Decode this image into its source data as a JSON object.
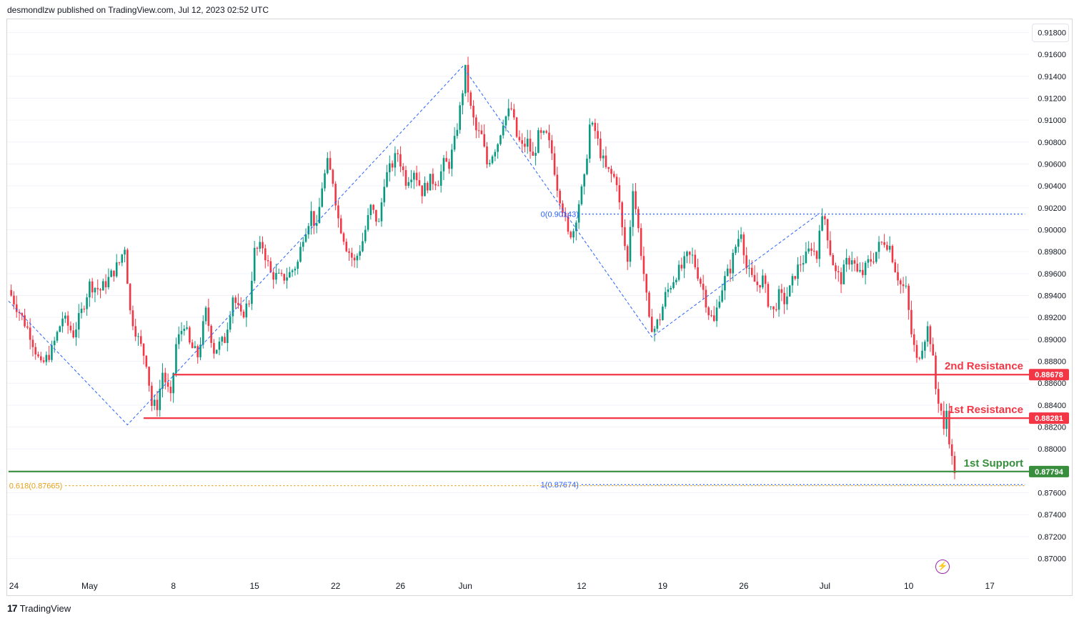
{
  "header": {
    "publish_line": "desmondlzw published on TradingView.com, Jul 12, 2023 02:52 UTC"
  },
  "footer": {
    "brand": "TradingView",
    "logo_glyph": "17"
  },
  "chart_data": {
    "type": "candlestick",
    "instrument": "",
    "ylim": [
      0.8688,
      0.9192
    ],
    "y_ticks": [
      "0.91800",
      "0.91600",
      "0.91400",
      "0.91200",
      "0.91000",
      "0.90800",
      "0.90600",
      "0.90400",
      "0.90200",
      "0.90000",
      "0.89800",
      "0.89600",
      "0.89400",
      "0.89200",
      "0.89000",
      "0.88800",
      "0.88600",
      "0.88400",
      "0.88200",
      "0.88000",
      "0.87800",
      "0.87600",
      "0.87400",
      "0.87200",
      "0.87000"
    ],
    "x_ticks": [
      {
        "label": "24",
        "bar": 2
      },
      {
        "label": "May",
        "bar": 30
      },
      {
        "label": "8",
        "bar": 61
      },
      {
        "label": "15",
        "bar": 91
      },
      {
        "label": "22",
        "bar": 121
      },
      {
        "label": "26",
        "bar": 145
      },
      {
        "label": "Jun",
        "bar": 169
      },
      {
        "label": "12",
        "bar": 212
      },
      {
        "label": "19",
        "bar": 242
      },
      {
        "label": "26",
        "bar": 272
      },
      {
        "label": "Jul",
        "bar": 302
      },
      {
        "label": "10",
        "bar": 333
      },
      {
        "label": "17",
        "bar": 363
      }
    ],
    "x_bar_count": 378,
    "last_bar": 350,
    "anchors": [
      [
        0,
        0.8945
      ],
      [
        3,
        0.893
      ],
      [
        8,
        0.8905
      ],
      [
        12,
        0.8875
      ],
      [
        16,
        0.889
      ],
      [
        20,
        0.892
      ],
      [
        24,
        0.8905
      ],
      [
        27,
        0.8925
      ],
      [
        30,
        0.895
      ],
      [
        34,
        0.8945
      ],
      [
        37,
        0.8955
      ],
      [
        41,
        0.897
      ],
      [
        43,
        0.8985
      ],
      [
        45,
        0.8925
      ],
      [
        48,
        0.89
      ],
      [
        51,
        0.888
      ],
      [
        53,
        0.884
      ],
      [
        55,
        0.884
      ],
      [
        57,
        0.887
      ],
      [
        60,
        0.8845
      ],
      [
        62,
        0.8895
      ],
      [
        65,
        0.8915
      ],
      [
        67,
        0.8895
      ],
      [
        70,
        0.8885
      ],
      [
        73,
        0.8925
      ],
      [
        76,
        0.889
      ],
      [
        80,
        0.89
      ],
      [
        83,
        0.894
      ],
      [
        86,
        0.892
      ],
      [
        89,
        0.8935
      ],
      [
        91,
        0.898
      ],
      [
        94,
        0.8985
      ],
      [
        97,
        0.896
      ],
      [
        101,
        0.8955
      ],
      [
        104,
        0.896
      ],
      [
        107,
        0.897
      ],
      [
        109,
        0.8995
      ],
      [
        112,
        0.9015
      ],
      [
        114,
        0.9
      ],
      [
        116,
        0.904
      ],
      [
        118,
        0.906
      ],
      [
        120,
        0.9045
      ],
      [
        122,
        0.901
      ],
      [
        125,
        0.8985
      ],
      [
        128,
        0.897
      ],
      [
        131,
        0.899
      ],
      [
        134,
        0.902
      ],
      [
        137,
        0.9005
      ],
      [
        139,
        0.9045
      ],
      [
        142,
        0.906
      ],
      [
        144,
        0.907
      ],
      [
        147,
        0.9045
      ],
      [
        150,
        0.9055
      ],
      [
        153,
        0.9035
      ],
      [
        156,
        0.9045
      ],
      [
        159,
        0.9045
      ],
      [
        161,
        0.906
      ],
      [
        163,
        0.906
      ],
      [
        165,
        0.908
      ],
      [
        167,
        0.911
      ],
      [
        169,
        0.9145
      ],
      [
        171,
        0.911
      ],
      [
        173,
        0.909
      ],
      [
        175,
        0.9085
      ],
      [
        177,
        0.906
      ],
      [
        179,
        0.907
      ],
      [
        181,
        0.908
      ],
      [
        183,
        0.91
      ],
      [
        186,
        0.911
      ],
      [
        188,
        0.9085
      ],
      [
        190,
        0.9075
      ],
      [
        192,
        0.908
      ],
      [
        194,
        0.9065
      ],
      [
        196,
        0.9085
      ],
      [
        199,
        0.9085
      ],
      [
        201,
        0.907
      ],
      [
        203,
        0.904
      ],
      [
        205,
        0.902
      ],
      [
        207,
        0.8995
      ],
      [
        209,
        0.9
      ],
      [
        211,
        0.9025
      ],
      [
        213,
        0.9045
      ],
      [
        215,
        0.9095
      ],
      [
        217,
        0.909
      ],
      [
        219,
        0.907
      ],
      [
        221,
        0.9055
      ],
      [
        223,
        0.905
      ],
      [
        225,
        0.9045
      ],
      [
        227,
        0.9
      ],
      [
        229,
        0.897
      ],
      [
        231,
        0.904
      ],
      [
        233,
        0.9
      ],
      [
        235,
        0.896
      ],
      [
        237,
        0.8915
      ],
      [
        239,
        0.891
      ],
      [
        241,
        0.892
      ],
      [
        243,
        0.894
      ],
      [
        245,
        0.895
      ],
      [
        247,
        0.896
      ],
      [
        249,
        0.8965
      ],
      [
        251,
        0.8975
      ],
      [
        253,
        0.8975
      ],
      [
        255,
        0.896
      ],
      [
        257,
        0.8945
      ],
      [
        259,
        0.8925
      ],
      [
        261,
        0.8915
      ],
      [
        263,
        0.894
      ],
      [
        265,
        0.8955
      ],
      [
        267,
        0.8965
      ],
      [
        269,
        0.8985
      ],
      [
        271,
        0.9
      ],
      [
        273,
        0.8965
      ],
      [
        275,
        0.8955
      ],
      [
        277,
        0.895
      ],
      [
        279,
        0.8955
      ],
      [
        281,
        0.8935
      ],
      [
        283,
        0.8925
      ],
      [
        285,
        0.894
      ],
      [
        287,
        0.8935
      ],
      [
        289,
        0.8945
      ],
      [
        291,
        0.896
      ],
      [
        293,
        0.897
      ],
      [
        295,
        0.8975
      ],
      [
        297,
        0.8985
      ],
      [
        299,
        0.8975
      ],
      [
        300,
        0.9005
      ],
      [
        302,
        0.901
      ],
      [
        304,
        0.898
      ],
      [
        306,
        0.896
      ],
      [
        308,
        0.8955
      ],
      [
        310,
        0.897
      ],
      [
        312,
        0.8975
      ],
      [
        314,
        0.896
      ],
      [
        316,
        0.896
      ],
      [
        318,
        0.897
      ],
      [
        320,
        0.8975
      ],
      [
        322,
        0.8985
      ],
      [
        324,
        0.899
      ],
      [
        326,
        0.8985
      ],
      [
        328,
        0.8965
      ],
      [
        330,
        0.895
      ],
      [
        332,
        0.8945
      ],
      [
        334,
        0.8905
      ],
      [
        336,
        0.888
      ],
      [
        338,
        0.8895
      ],
      [
        340,
        0.891
      ],
      [
        341,
        0.89
      ],
      [
        342,
        0.888
      ],
      [
        343,
        0.8855
      ],
      [
        344,
        0.8845
      ],
      [
        345,
        0.8835
      ],
      [
        346,
        0.8815
      ],
      [
        347,
        0.8835
      ],
      [
        348,
        0.881
      ],
      [
        349,
        0.879
      ],
      [
        350,
        0.8778
      ]
    ],
    "levels": [
      {
        "name": "2nd Resistance",
        "value": 0.88678,
        "label": "0.88678",
        "color": "#f23645",
        "from_bar": 61
      },
      {
        "name": "1st Resistance",
        "value": 0.88281,
        "label": "0.88281",
        "color": "#f23645",
        "from_bar": 50
      },
      {
        "name": "1st Support",
        "value": 0.87794,
        "label": "0.87794",
        "color": "#388e3c",
        "from_bar": 0
      }
    ],
    "fib_lines": [
      {
        "text": "0(0.90143)",
        "value": 0.90143,
        "color": "#2962ff",
        "from_bar": 212,
        "to_bar": 376
      },
      {
        "text": "1(0.87674)",
        "value": 0.87674,
        "color": "#2962ff",
        "from_bar": 212,
        "to_bar": 376
      },
      {
        "text": "0.618(0.87665)",
        "value": 0.87665,
        "color": "#e6a01a",
        "from_bar": 21,
        "to_bar": 376
      }
    ],
    "zigzag": [
      [
        0,
        0.8935
      ],
      [
        44,
        0.8822
      ],
      [
        168,
        0.9149
      ],
      [
        238,
        0.8902
      ],
      [
        300,
        0.9015
      ]
    ],
    "colors": {
      "up": "#089981",
      "down": "#f23645",
      "zigzag": "#2962ff",
      "grid": "#f0f3fa"
    }
  }
}
